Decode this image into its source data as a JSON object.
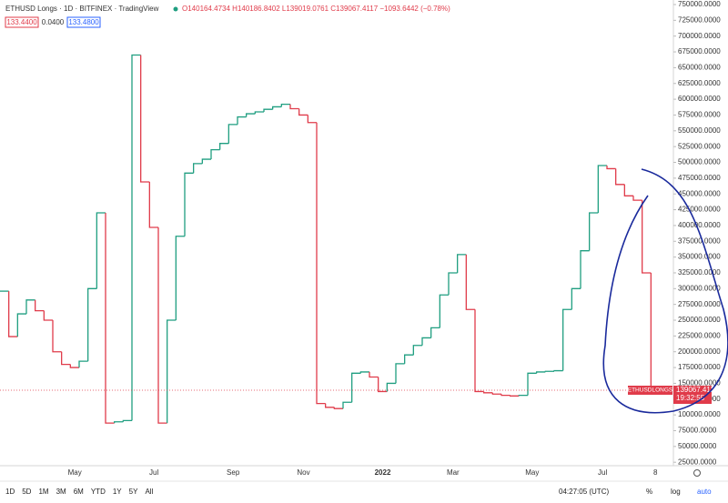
{
  "header": {
    "symbol": "ETHUSD Longs · 1D · BITFINEX · TradingView",
    "ohlc": "O140164.4734 H140186.8402 L139019.0761 C139067.4117 −1093.6442 (−0.78%)",
    "bid": "133.4400",
    "spread": "0.0400",
    "ask": "133.4800"
  },
  "price_label": {
    "symbol": "ETHUSDLONGS",
    "countdown": "19:32:55"
  },
  "toolbar": {
    "ranges": [
      "1D",
      "5D",
      "1M",
      "3M",
      "6M",
      "YTD",
      "1Y",
      "5Y",
      "All"
    ],
    "clock": "04:27:05 (UTC)",
    "percent": "%",
    "log": "log",
    "auto": "auto"
  },
  "chart_data": {
    "type": "step",
    "categories": [
      null,
      null,
      null,
      null,
      null,
      null,
      null,
      null,
      "May",
      null,
      null,
      null,
      null,
      null,
      null,
      null,
      null,
      "Jul",
      null,
      null,
      null,
      null,
      null,
      null,
      null,
      null,
      "Sep",
      null,
      null,
      null,
      null,
      null,
      null,
      null,
      "Nov",
      null,
      null,
      null,
      null,
      null,
      null,
      null,
      null,
      "2022",
      null,
      null,
      null,
      null,
      null,
      null,
      null,
      "Mar",
      null,
      null,
      null,
      null,
      null,
      null,
      null,
      null,
      "May",
      null,
      null,
      null,
      null,
      null,
      null,
      null,
      "Jul",
      null,
      null,
      null,
      null,
      null,
      "8"
    ],
    "series": [
      {
        "name": "ETHUSDLONGS",
        "color": "#e03b4a",
        "up_color": "#1f9e80",
        "values": [
          296000,
          224000,
          260000,
          282000,
          265000,
          250000,
          200000,
          180000,
          175000,
          185000,
          300000,
          420000,
          87000,
          89000,
          91000,
          670000,
          469000,
          397000,
          87000,
          250000,
          383000,
          483000,
          498000,
          505000,
          520000,
          530000,
          560000,
          572000,
          577000,
          580000,
          584000,
          588000,
          592000,
          585000,
          575000,
          563000,
          118000,
          112000,
          110000,
          120000,
          166000,
          168000,
          160000,
          137000,
          150000,
          181000,
          195000,
          210000,
          222000,
          238000,
          290000,
          325000,
          354000,
          267000,
          137000,
          135000,
          133000,
          131000,
          130000,
          131000,
          166000,
          168000,
          169000,
          170000,
          267000,
          300000,
          360000,
          420000,
          495000,
          490000,
          465000,
          447000,
          440000,
          325000,
          139067.4117
        ]
      }
    ],
    "ylim": [
      19500,
      757200
    ],
    "yticks": [
      {
        "value": 750000,
        "label": "750000.0000"
      },
      {
        "value": 725000,
        "label": "725000.0000"
      },
      {
        "value": 700000,
        "label": "700000.0000"
      },
      {
        "value": 675000,
        "label": "675000.0000"
      },
      {
        "value": 650000,
        "label": "650000.0000"
      },
      {
        "value": 625000,
        "label": "625000.0000"
      },
      {
        "value": 600000,
        "label": "600000.0000"
      },
      {
        "value": 575000,
        "label": "575000.0000"
      },
      {
        "value": 550000,
        "label": "550000.0000"
      },
      {
        "value": 525000,
        "label": "525000.0000"
      },
      {
        "value": 500000,
        "label": "500000.0000"
      },
      {
        "value": 475000,
        "label": "475000.0000"
      },
      {
        "value": 450000,
        "label": "450000.0000"
      },
      {
        "value": 425000,
        "label": "425000.0000"
      },
      {
        "value": 400000,
        "label": "400000.0000"
      },
      {
        "value": 375000,
        "label": "375000.0000"
      },
      {
        "value": 350000,
        "label": "350000.0000"
      },
      {
        "value": 325000,
        "label": "325000.0000"
      },
      {
        "value": 300000,
        "label": "300000.0000"
      },
      {
        "value": 275000,
        "label": "275000.0000"
      },
      {
        "value": 250000,
        "label": "250000.0000"
      },
      {
        "value": 225000,
        "label": "225000.0000"
      },
      {
        "value": 200000,
        "label": "200000.0000"
      },
      {
        "value": 175000,
        "label": "175000.0000"
      },
      {
        "value": 150000,
        "label": "150000.0000"
      },
      {
        "value": 125000,
        "label": "125000.0000"
      },
      {
        "value": 100000,
        "label": "100000.0000"
      },
      {
        "value": 75000,
        "label": "75000.0000"
      },
      {
        "value": 50000,
        "label": "50000.0000"
      },
      {
        "value": 25000,
        "label": "25000.0000"
      }
    ],
    "grid": false
  }
}
